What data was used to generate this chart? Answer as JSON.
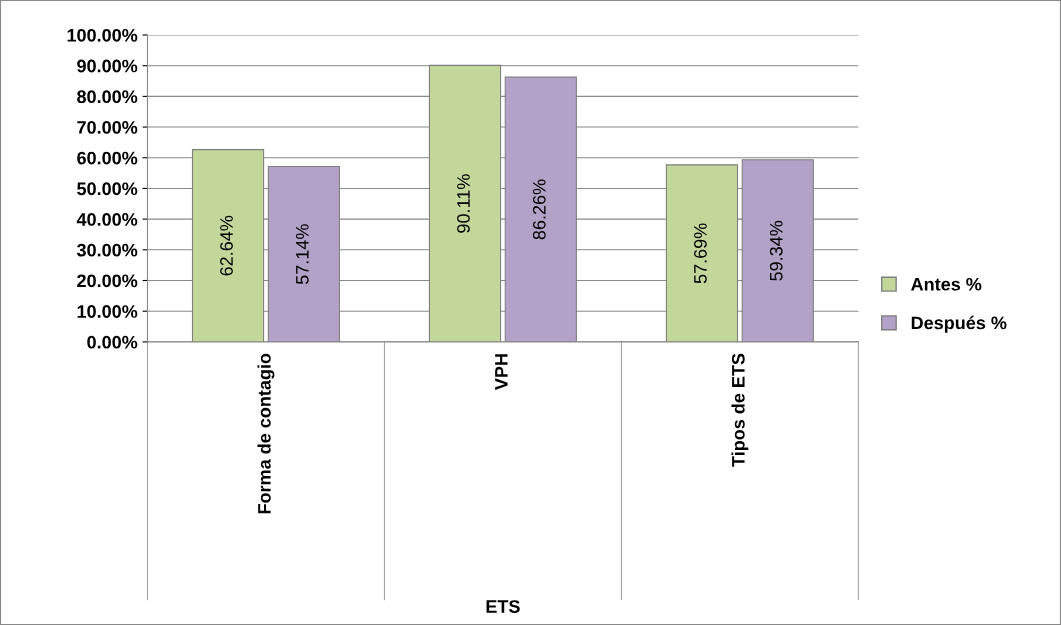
{
  "chart_data": {
    "type": "bar",
    "xlabel": "ETS",
    "categories": [
      "Forma de contagio",
      "VPH",
      "Tipos de ETS"
    ],
    "series": [
      {
        "name": "Antes %",
        "color": "#c4d79b",
        "values": [
          62.64,
          90.11,
          57.69
        ],
        "value_labels": [
          "62.64%",
          "90.11%",
          "57.69%"
        ]
      },
      {
        "name": "Después %",
        "color": "#b3a2c7",
        "values": [
          57.14,
          86.26,
          59.34
        ],
        "value_labels": [
          "57.14%",
          "86.26%",
          "59.34%"
        ]
      }
    ],
    "ylim": [
      0,
      100
    ],
    "yticks": [
      {
        "value": 0,
        "label": "0.00%"
      },
      {
        "value": 10,
        "label": "10.00%"
      },
      {
        "value": 20,
        "label": "20.00%"
      },
      {
        "value": 30,
        "label": "30.00%"
      },
      {
        "value": 40,
        "label": "40.00%"
      },
      {
        "value": 50,
        "label": "50.00%"
      },
      {
        "value": 60,
        "label": "60.00%"
      },
      {
        "value": 70,
        "label": "70.00%"
      },
      {
        "value": 80,
        "label": "80.00%"
      },
      {
        "value": 90,
        "label": "90.00%"
      },
      {
        "value": 100,
        "label": "100.00%"
      }
    ],
    "grid": "y",
    "legend": "right"
  }
}
